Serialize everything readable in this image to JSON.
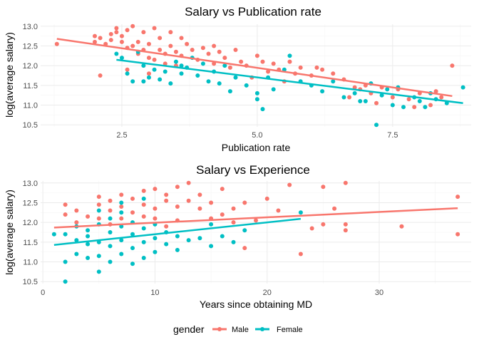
{
  "colors": {
    "male": "#F8766D",
    "female": "#00BFC4",
    "grid_major": "#ebebeb",
    "grid_minor": "#f5f5f5"
  },
  "legend": {
    "title": "gender",
    "position": "bottom",
    "entries": [
      {
        "label": "Male",
        "color": "#F8766D"
      },
      {
        "label": "Female",
        "color": "#00BFC4"
      }
    ]
  },
  "chart_data": [
    {
      "type": "scatter",
      "title": "Salary vs Publication rate",
      "xlabel": "Publication rate",
      "ylabel": "log(average salary)",
      "xlim": [
        1.0,
        8.95
      ],
      "ylim": [
        10.45,
        13.05
      ],
      "xticks": [
        2.5,
        5.0,
        7.5
      ],
      "xtick_labels": [
        "2.5",
        "5.0",
        "7.5"
      ],
      "yticks": [
        10.5,
        11.0,
        11.5,
        12.0,
        12.5,
        13.0
      ],
      "ytick_labels": [
        "10.5",
        "11.0",
        "11.5",
        "12.0",
        "12.5",
        "13.0"
      ],
      "grid": true,
      "series": [
        {
          "name": "Male",
          "points": [
            [
              1.3,
              12.55
            ],
            [
              2.0,
              12.75
            ],
            [
              2.0,
              12.6
            ],
            [
              2.1,
              12.7
            ],
            [
              2.2,
              12.55
            ],
            [
              2.3,
              12.8
            ],
            [
              2.3,
              12.65
            ],
            [
              2.4,
              12.95
            ],
            [
              2.4,
              12.85
            ],
            [
              2.5,
              12.75
            ],
            [
              2.5,
              12.6
            ],
            [
              2.6,
              12.45
            ],
            [
              2.6,
              12.9
            ],
            [
              2.7,
              13.0
            ],
            [
              2.7,
              12.5
            ],
            [
              2.8,
              12.3
            ],
            [
              2.8,
              12.6
            ],
            [
              2.9,
              12.85
            ],
            [
              2.9,
              12.4
            ],
            [
              3.0,
              12.2
            ],
            [
              3.0,
              12.55
            ],
            [
              3.1,
              12.95
            ],
            [
              3.1,
              12.15
            ],
            [
              3.2,
              12.4
            ],
            [
              3.2,
              12.7
            ],
            [
              3.3,
              12.3
            ],
            [
              3.3,
              12.05
            ],
            [
              3.4,
              12.5
            ],
            [
              3.5,
              12.35
            ],
            [
              3.5,
              12.0
            ],
            [
              3.6,
              12.25
            ],
            [
              3.7,
              12.55
            ],
            [
              3.8,
              12.4
            ],
            [
              3.9,
              12.15
            ],
            [
              4.0,
              12.45
            ],
            [
              4.1,
              12.3
            ],
            [
              4.2,
              12.05
            ],
            [
              4.3,
              12.35
            ],
            [
              4.4,
              12.2
            ],
            [
              4.5,
              11.95
            ],
            [
              4.6,
              12.4
            ],
            [
              4.7,
              12.1
            ],
            [
              4.8,
              12.0
            ],
            [
              5.0,
              12.25
            ],
            [
              5.1,
              12.1
            ],
            [
              5.2,
              11.85
            ],
            [
              5.3,
              12.05
            ],
            [
              5.4,
              11.9
            ],
            [
              5.6,
              12.1
            ],
            [
              5.8,
              11.95
            ],
            [
              6.0,
              11.75
            ],
            [
              6.2,
              11.9
            ],
            [
              6.4,
              11.8
            ],
            [
              6.6,
              11.65
            ],
            [
              6.8,
              11.45
            ],
            [
              7.0,
              11.5
            ],
            [
              7.1,
              11.3
            ],
            [
              7.3,
              11.45
            ],
            [
              7.5,
              11.2
            ],
            [
              7.6,
              11.4
            ],
            [
              7.8,
              11.15
            ],
            [
              8.0,
              11.3
            ],
            [
              8.2,
              11.0
            ],
            [
              8.4,
              11.2
            ],
            [
              8.6,
              12.0
            ],
            [
              2.1,
              11.75
            ],
            [
              2.6,
              11.9
            ],
            [
              3.0,
              11.8
            ],
            [
              3.6,
              12.7
            ],
            [
              4.9,
              11.7
            ],
            [
              5.5,
              11.6
            ],
            [
              6.1,
              11.95
            ],
            [
              6.7,
              11.2
            ],
            [
              7.2,
              11.05
            ],
            [
              7.9,
              10.95
            ],
            [
              8.3,
              11.35
            ],
            [
              3.4,
              12.85
            ],
            [
              4.2,
              12.5
            ],
            [
              5.7,
              11.8
            ],
            [
              6.9,
              11.4
            ]
          ]
        },
        {
          "name": "Female",
          "points": [
            [
              2.4,
              12.3
            ],
            [
              2.5,
              12.2
            ],
            [
              2.6,
              11.8
            ],
            [
              2.7,
              11.6
            ],
            [
              2.8,
              12.35
            ],
            [
              2.9,
              12.0
            ],
            [
              3.0,
              11.7
            ],
            [
              3.1,
              11.9
            ],
            [
              3.2,
              11.65
            ],
            [
              3.3,
              11.85
            ],
            [
              3.4,
              11.55
            ],
            [
              3.5,
              12.1
            ],
            [
              3.6,
              11.8
            ],
            [
              3.7,
              11.95
            ],
            [
              3.8,
              12.2
            ],
            [
              3.9,
              11.75
            ],
            [
              4.0,
              12.05
            ],
            [
              4.1,
              11.6
            ],
            [
              4.2,
              11.85
            ],
            [
              4.3,
              11.55
            ],
            [
              4.4,
              12.0
            ],
            [
              4.6,
              11.7
            ],
            [
              4.8,
              11.5
            ],
            [
              5.0,
              11.3
            ],
            [
              5.0,
              11.15
            ],
            [
              5.1,
              10.9
            ],
            [
              5.2,
              11.7
            ],
            [
              5.3,
              11.4
            ],
            [
              5.5,
              11.9
            ],
            [
              5.6,
              12.25
            ],
            [
              5.8,
              11.6
            ],
            [
              6.0,
              11.5
            ],
            [
              6.2,
              11.35
            ],
            [
              6.4,
              11.6
            ],
            [
              6.6,
              11.2
            ],
            [
              6.8,
              11.3
            ],
            [
              7.0,
              11.1
            ],
            [
              7.1,
              11.55
            ],
            [
              7.2,
              10.5
            ],
            [
              7.3,
              11.25
            ],
            [
              7.5,
              11.0
            ],
            [
              7.6,
              11.45
            ],
            [
              7.7,
              10.95
            ],
            [
              7.9,
              11.2
            ],
            [
              8.0,
              11.1
            ],
            [
              8.1,
              10.95
            ],
            [
              8.3,
              11.15
            ],
            [
              8.5,
              11.05
            ],
            [
              8.8,
              11.45
            ],
            [
              2.9,
              11.6
            ],
            [
              4.5,
              11.35
            ],
            [
              6.9,
              11.1
            ],
            [
              7.4,
              11.4
            ],
            [
              8.2,
              11.3
            ],
            [
              3.6,
              12.0
            ]
          ]
        }
      ],
      "trend_lines": [
        {
          "name": "Male",
          "x": [
            1.3,
            8.6
          ],
          "y": [
            12.68,
            11.23
          ]
        },
        {
          "name": "Female",
          "x": [
            2.4,
            8.8
          ],
          "y": [
            12.15,
            11.05
          ]
        }
      ]
    },
    {
      "type": "scatter",
      "title": "Salary vs Experience",
      "xlabel": "Years since obtaining MD",
      "ylabel": "log(average salary)",
      "xlim": [
        -0.2,
        38.2
      ],
      "ylim": [
        10.45,
        13.05
      ],
      "xticks": [
        0,
        10,
        20,
        30
      ],
      "xtick_labels": [
        "0",
        "10",
        "20",
        "30"
      ],
      "yticks": [
        10.5,
        11.0,
        11.5,
        12.0,
        12.5,
        13.0
      ],
      "ytick_labels": [
        "10.5",
        "11.0",
        "11.5",
        "12.0",
        "12.5",
        "13.0"
      ],
      "grid": true,
      "series": [
        {
          "name": "Male",
          "points": [
            [
              2,
              12.45
            ],
            [
              2,
              12.2
            ],
            [
              3,
              12.0
            ],
            [
              3,
              12.3
            ],
            [
              4,
              12.15
            ],
            [
              5,
              12.65
            ],
            [
              5,
              12.45
            ],
            [
              5,
              12.1
            ],
            [
              6,
              12.55
            ],
            [
              6,
              12.3
            ],
            [
              7,
              12.4
            ],
            [
              7,
              12.7
            ],
            [
              7,
              12.1
            ],
            [
              8,
              12.6
            ],
            [
              8,
              12.25
            ],
            [
              9,
              12.45
            ],
            [
              9,
              12.8
            ],
            [
              10,
              12.35
            ],
            [
              10,
              12.85
            ],
            [
              10,
              12.1
            ],
            [
              11,
              12.55
            ],
            [
              11,
              12.7
            ],
            [
              12,
              12.4
            ],
            [
              12,
              12.9
            ],
            [
              12,
              12.05
            ],
            [
              13,
              12.55
            ],
            [
              13,
              13.0
            ],
            [
              14,
              12.35
            ],
            [
              14,
              12.7
            ],
            [
              15,
              12.5
            ],
            [
              15,
              12.1
            ],
            [
              16,
              12.2
            ],
            [
              16,
              12.85
            ],
            [
              17,
              12.35
            ],
            [
              17,
              12.0
            ],
            [
              18,
              11.35
            ],
            [
              18,
              12.5
            ],
            [
              19,
              12.05
            ],
            [
              20,
              12.6
            ],
            [
              21,
              12.3
            ],
            [
              22,
              12.95
            ],
            [
              23,
              11.2
            ],
            [
              24,
              11.85
            ],
            [
              25,
              11.95
            ],
            [
              25,
              12.9
            ],
            [
              26,
              12.35
            ],
            [
              27,
              13.0
            ],
            [
              27,
              11.8
            ],
            [
              27,
              11.95
            ],
            [
              32,
              11.9
            ],
            [
              37,
              12.65
            ],
            [
              37,
              11.7
            ],
            [
              6,
              11.95
            ],
            [
              9,
              12.15
            ],
            [
              11,
              11.9
            ]
          ]
        },
        {
          "name": "Female",
          "points": [
            [
              1,
              11.7
            ],
            [
              2,
              10.5
            ],
            [
              2,
              11.0
            ],
            [
              2,
              11.7
            ],
            [
              3,
              11.2
            ],
            [
              3,
              11.55
            ],
            [
              3,
              11.9
            ],
            [
              4,
              11.1
            ],
            [
              4,
              11.45
            ],
            [
              4,
              11.8
            ],
            [
              5,
              10.75
            ],
            [
              5,
              11.15
            ],
            [
              5,
              11.5
            ],
            [
              5,
              11.95
            ],
            [
              5,
              12.3
            ],
            [
              6,
              11.0
            ],
            [
              6,
              11.4
            ],
            [
              6,
              11.75
            ],
            [
              6,
              12.1
            ],
            [
              7,
              11.2
            ],
            [
              7,
              11.55
            ],
            [
              7,
              11.9
            ],
            [
              7,
              12.25
            ],
            [
              8,
              10.95
            ],
            [
              8,
              11.35
            ],
            [
              8,
              11.7
            ],
            [
              8,
              12.0
            ],
            [
              9,
              11.1
            ],
            [
              9,
              11.5
            ],
            [
              9,
              11.85
            ],
            [
              9,
              12.6
            ],
            [
              10,
              11.25
            ],
            [
              10,
              11.6
            ],
            [
              10,
              11.95
            ],
            [
              11,
              11.45
            ],
            [
              11,
              11.75
            ],
            [
              12,
              11.3
            ],
            [
              12,
              11.65
            ],
            [
              13,
              11.55
            ],
            [
              14,
              11.6
            ],
            [
              15,
              11.4
            ],
            [
              15,
              11.95
            ],
            [
              16,
              11.65
            ],
            [
              17,
              11.5
            ],
            [
              18,
              11.8
            ],
            [
              23,
              12.25
            ],
            [
              7,
              12.5
            ],
            [
              4,
              11.65
            ]
          ]
        }
      ],
      "trend_lines": [
        {
          "name": "Male",
          "x": [
            1,
            37
          ],
          "y": [
            11.87,
            12.36
          ]
        },
        {
          "name": "Female",
          "x": [
            1,
            23
          ],
          "y": [
            11.43,
            12.09
          ]
        }
      ]
    }
  ]
}
